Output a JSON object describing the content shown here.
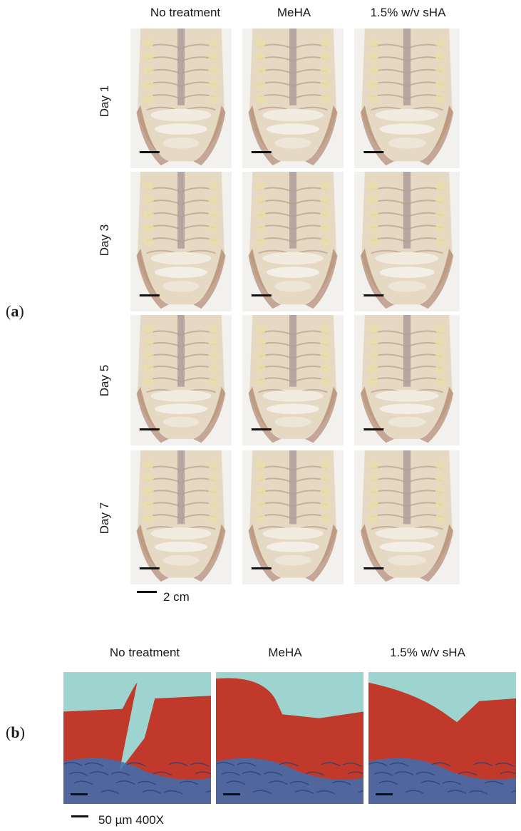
{
  "panel_a": {
    "label_open": "(",
    "label_letter": "a",
    "label_close": ")",
    "column_headers": [
      "No treatment",
      "MeHA",
      "1.5% w/v sHA"
    ],
    "row_labels": [
      "Day 1",
      "Day 3",
      "Day 5",
      "Day 7"
    ],
    "scale_label": "2 cm"
  },
  "panel_b": {
    "label_open": "(",
    "label_letter": "b",
    "label_close": ")",
    "column_headers": [
      "No treatment",
      "MeHA",
      "1.5% w/v sHA"
    ],
    "scale_label": "50 µm  400X"
  },
  "colors": {
    "tissue_cream": "#e6d9c4",
    "tissue_brown": "#9c6a4f",
    "stain_red": "#c0392b",
    "stain_blue": "#3d6fb0",
    "histo_background": "#9ed4d0"
  }
}
